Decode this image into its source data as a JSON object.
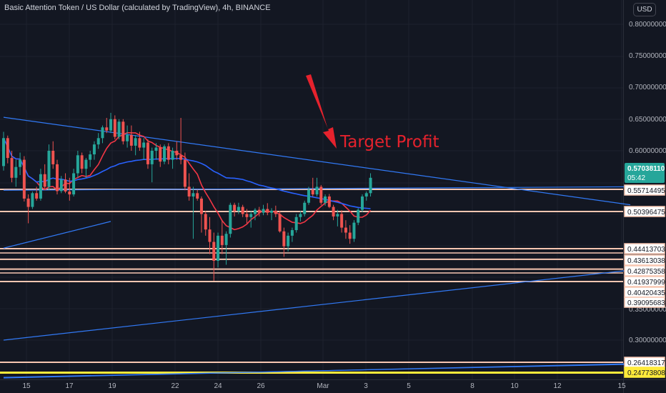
{
  "header": {
    "title": "Basic Attention Token / US Dollar (calculated by TradingView), 4h, BINANCE",
    "currency": "USD"
  },
  "annotation": {
    "text": "Target Profit"
  },
  "colors": {
    "background": "#131722",
    "grid": "#1e222d",
    "axis_text": "#b2b5be",
    "up": "#26a69a",
    "down": "#ef5350",
    "ma_red": "#f23645",
    "ma_blue": "#2962ff",
    "trendline": "#3179f5",
    "support": "#f7c6b1",
    "arrow": "#e5222d",
    "highlight": "#ffeb3b"
  },
  "chart_data": {
    "type": "candlestick",
    "y_axis_labels": [
      "0.80000000",
      "0.75000000",
      "0.70000000",
      "0.65000000",
      "0.60000000",
      "0.35000000",
      "0.30000000"
    ],
    "x_axis_labels": [
      "15",
      "17",
      "19",
      "22",
      "24",
      "26",
      "Mar",
      "3",
      "5",
      "8",
      "10",
      "12",
      "15"
    ],
    "price_tags": [
      {
        "value": "0.57038110",
        "sub": "05:42",
        "kind": "last"
      },
      {
        "value": "0.55714495",
        "kind": "level"
      },
      {
        "value": "0.50396475",
        "kind": "level"
      },
      {
        "value": "0.44413703",
        "kind": "level"
      },
      {
        "value": "0.43613038",
        "kind": "level"
      },
      {
        "value": "0.42875358",
        "kind": "level"
      },
      {
        "value": "0.41937999",
        "kind": "level"
      },
      {
        "value": "0.40420435",
        "kind": "level"
      },
      {
        "value": "0.39095683",
        "kind": "level"
      },
      {
        "value": "0.26418317",
        "kind": "level"
      },
      {
        "value": "0.24773808",
        "kind": "highlight"
      }
    ],
    "horizontal_levels": [
      0.55714495,
      0.50396475,
      0.44413703,
      0.43613038,
      0.42875358,
      0.41937999,
      0.26418317,
      0.24773808
    ],
    "ohlc": [
      [
        0.583,
        0.63,
        0.578,
        0.62
      ],
      [
        0.62,
        0.624,
        0.586,
        0.592
      ],
      [
        0.592,
        0.6,
        0.565,
        0.57
      ],
      [
        0.57,
        0.59,
        0.56,
        0.582
      ],
      [
        0.582,
        0.598,
        0.573,
        0.59
      ],
      [
        0.59,
        0.594,
        0.528,
        0.535
      ],
      [
        0.535,
        0.545,
        0.485,
        0.515
      ],
      [
        0.515,
        0.552,
        0.51,
        0.548
      ],
      [
        0.548,
        0.56,
        0.53,
        0.535
      ],
      [
        0.535,
        0.58,
        0.53,
        0.574
      ],
      [
        0.574,
        0.585,
        0.555,
        0.56
      ],
      [
        0.56,
        0.61,
        0.555,
        0.6
      ],
      [
        0.6,
        0.615,
        0.58,
        0.585
      ],
      [
        0.585,
        0.59,
        0.545,
        0.553
      ],
      [
        0.553,
        0.572,
        0.548,
        0.568
      ],
      [
        0.568,
        0.575,
        0.548,
        0.552
      ],
      [
        0.552,
        0.57,
        0.53,
        0.545
      ],
      [
        0.545,
        0.58,
        0.54,
        0.575
      ],
      [
        0.575,
        0.6,
        0.57,
        0.595
      ],
      [
        0.595,
        0.598,
        0.575,
        0.58
      ],
      [
        0.58,
        0.592,
        0.57,
        0.59
      ],
      [
        0.59,
        0.6,
        0.582,
        0.596
      ],
      [
        0.596,
        0.615,
        0.59,
        0.61
      ],
      [
        0.61,
        0.628,
        0.603,
        0.62
      ],
      [
        0.62,
        0.64,
        0.612,
        0.637
      ],
      [
        0.637,
        0.652,
        0.628,
        0.632
      ],
      [
        0.632,
        0.66,
        0.628,
        0.65
      ],
      [
        0.65,
        0.656,
        0.618,
        0.622
      ],
      [
        0.622,
        0.65,
        0.618,
        0.646
      ],
      [
        0.646,
        0.65,
        0.61,
        0.615
      ],
      [
        0.615,
        0.64,
        0.605,
        0.625
      ],
      [
        0.625,
        0.64,
        0.6,
        0.608
      ],
      [
        0.608,
        0.625,
        0.595,
        0.62
      ],
      [
        0.62,
        0.63,
        0.6,
        0.605
      ],
      [
        0.605,
        0.62,
        0.59,
        0.613
      ],
      [
        0.613,
        0.618,
        0.58,
        0.585
      ],
      [
        0.585,
        0.605,
        0.565,
        0.6
      ],
      [
        0.6,
        0.612,
        0.59,
        0.605
      ],
      [
        0.605,
        0.61,
        0.582,
        0.588
      ],
      [
        0.588,
        0.61,
        0.585,
        0.607
      ],
      [
        0.607,
        0.612,
        0.585,
        0.59
      ],
      [
        0.59,
        0.605,
        0.58,
        0.6
      ],
      [
        0.6,
        0.615,
        0.59,
        0.595
      ],
      [
        0.595,
        0.652,
        0.585,
        0.59
      ],
      [
        0.59,
        0.598,
        0.555,
        0.56
      ],
      [
        0.56,
        0.575,
        0.53,
        0.54
      ],
      [
        0.54,
        0.56,
        0.46,
        0.548
      ],
      [
        0.548,
        0.556,
        0.53,
        0.535
      ],
      [
        0.535,
        0.54,
        0.47,
        0.5
      ],
      [
        0.5,
        0.505,
        0.465,
        0.475
      ],
      [
        0.475,
        0.495,
        0.44,
        0.455
      ],
      [
        0.455,
        0.47,
        0.42,
        0.435
      ],
      [
        0.435,
        0.47,
        0.43,
        0.465
      ],
      [
        0.465,
        0.49,
        0.44,
        0.45
      ],
      [
        0.45,
        0.472,
        0.432,
        0.468
      ],
      [
        0.468,
        0.525,
        0.462,
        0.52
      ],
      [
        0.52,
        0.525,
        0.496,
        0.505
      ],
      [
        0.505,
        0.525,
        0.5,
        0.515
      ],
      [
        0.515,
        0.52,
        0.495,
        0.5
      ],
      [
        0.5,
        0.51,
        0.485,
        0.495
      ],
      [
        0.495,
        0.505,
        0.478,
        0.5
      ],
      [
        0.5,
        0.512,
        0.49,
        0.508
      ],
      [
        0.508,
        0.515,
        0.496,
        0.502
      ],
      [
        0.502,
        0.52,
        0.498,
        0.51
      ],
      [
        0.51,
        0.524,
        0.498,
        0.502
      ],
      [
        0.502,
        0.512,
        0.49,
        0.506
      ],
      [
        0.506,
        0.518,
        0.495,
        0.5
      ],
      [
        0.5,
        0.505,
        0.47,
        0.472
      ],
      [
        0.472,
        0.478,
        0.438,
        0.448
      ],
      [
        0.448,
        0.47,
        0.442,
        0.465
      ],
      [
        0.465,
        0.478,
        0.455,
        0.474
      ],
      [
        0.474,
        0.5,
        0.47,
        0.495
      ],
      [
        0.495,
        0.505,
        0.488,
        0.5
      ],
      [
        0.5,
        0.53,
        0.496,
        0.525
      ],
      [
        0.525,
        0.56,
        0.52,
        0.556
      ],
      [
        0.556,
        0.57,
        0.54,
        0.545
      ],
      [
        0.545,
        0.57,
        0.54,
        0.56
      ],
      [
        0.56,
        0.562,
        0.52,
        0.525
      ],
      [
        0.525,
        0.545,
        0.518,
        0.54
      ],
      [
        0.54,
        0.546,
        0.512,
        0.515
      ],
      [
        0.515,
        0.52,
        0.49,
        0.496
      ],
      [
        0.496,
        0.508,
        0.48,
        0.5
      ],
      [
        0.5,
        0.507,
        0.47,
        0.478
      ],
      [
        0.478,
        0.49,
        0.46,
        0.47
      ],
      [
        0.47,
        0.482,
        0.452,
        0.46
      ],
      [
        0.46,
        0.49,
        0.455,
        0.486
      ],
      [
        0.486,
        0.512,
        0.482,
        0.508
      ],
      [
        0.508,
        0.545,
        0.503,
        0.54
      ],
      [
        0.54,
        0.552,
        0.53,
        0.548
      ],
      [
        0.548,
        0.575,
        0.54,
        0.57
      ]
    ],
    "series": [
      {
        "values_ref": "ohlc",
        "ma_period": 9,
        "color_key": "ma_red"
      },
      {
        "values_ref": "ohlc",
        "ma_period": 50,
        "color_key": "ma_blue"
      }
    ],
    "trendlines": [
      {
        "from": [
          0,
          0.653
        ],
        "to": [
          152,
          0.52
        ],
        "color_key": "trendline"
      },
      {
        "from": [
          0,
          0.555
        ],
        "to": [
          152,
          0.56
        ],
        "color_key": "trendline"
      },
      {
        "from": [
          0,
          0.445
        ],
        "to": [
          26,
          0.488
        ],
        "color_key": "trendline"
      },
      {
        "from": [
          0,
          0.3
        ],
        "to": [
          152,
          0.428
        ],
        "color_key": "trendline"
      },
      {
        "from": [
          0,
          0.241
        ],
        "to": [
          152,
          0.261
        ],
        "color_key": "trendline"
      },
      {
        "from": [
          0,
          0.24
        ],
        "to": [
          152,
          0.262
        ],
        "color_key": "trendline"
      }
    ],
    "y_scale": {
      "labels_values": [
        0.8,
        0.75,
        0.7,
        0.65,
        0.6,
        0.35,
        0.3
      ]
    }
  }
}
